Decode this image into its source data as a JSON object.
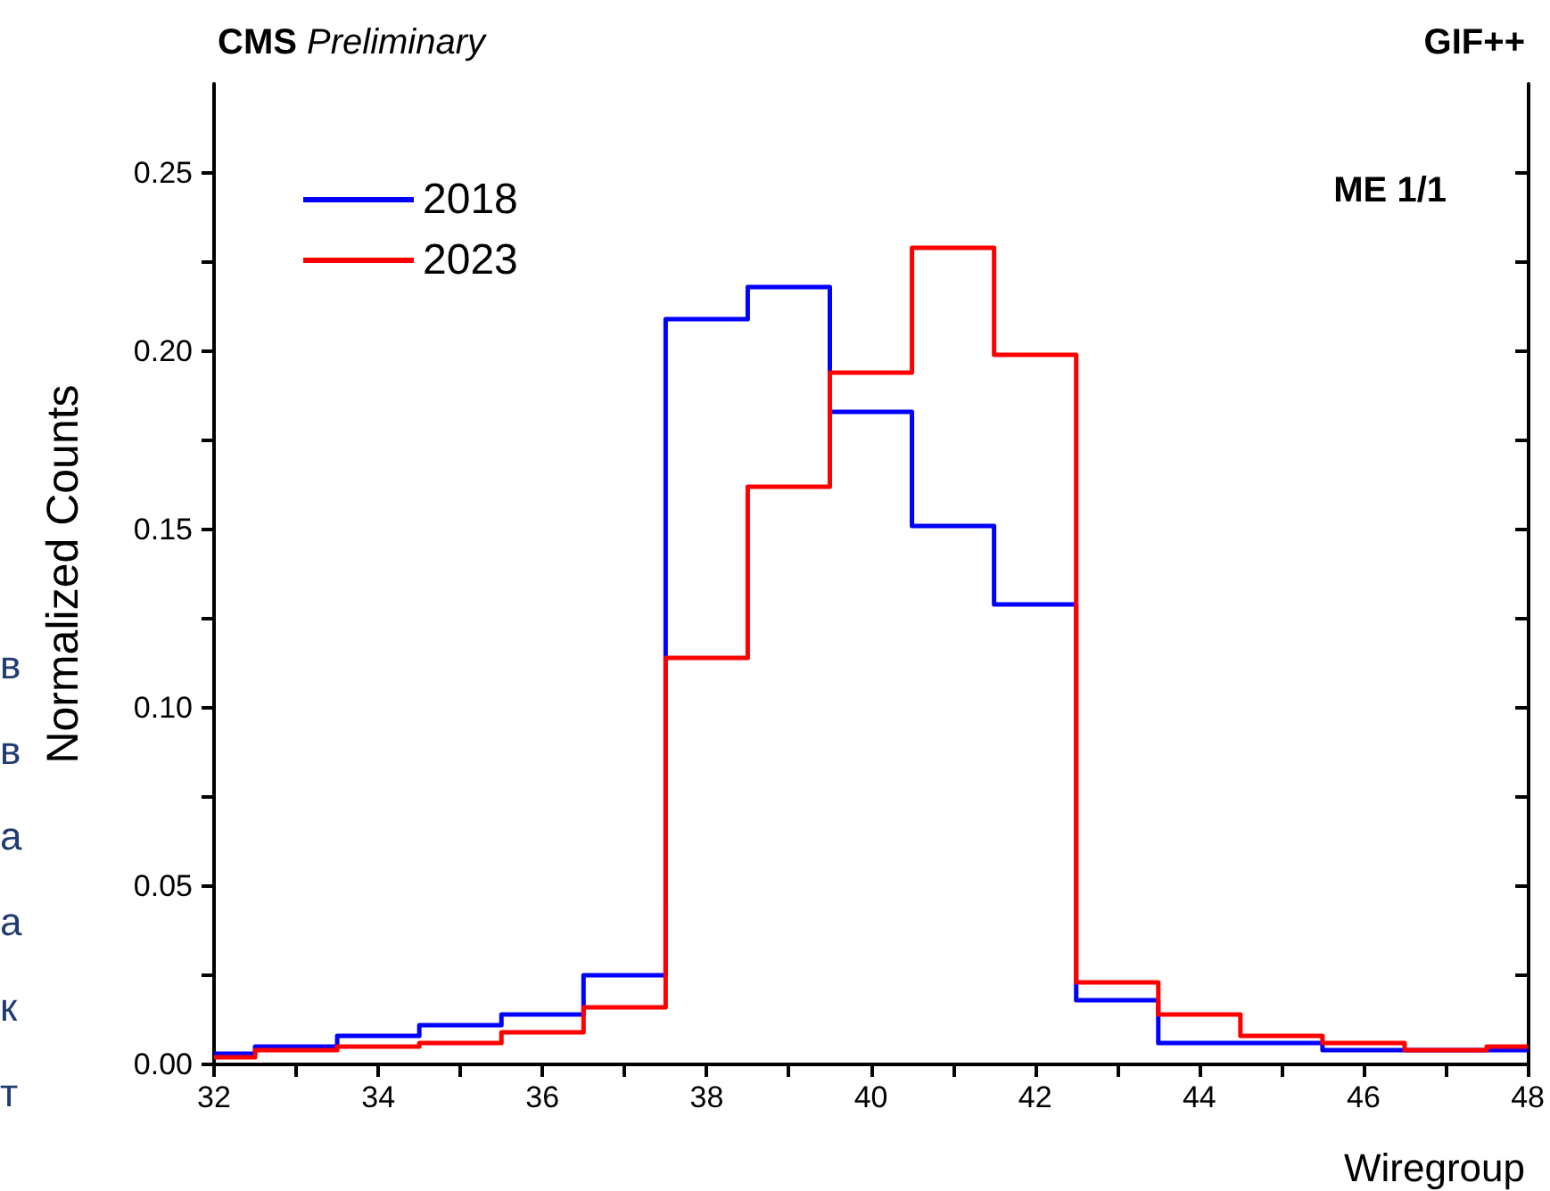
{
  "chart_data": {
    "type": "histogram",
    "title": "CMS Preliminary",
    "xlabel": "Wiregroup",
    "ylabel": "Normalized Counts",
    "annotations": [
      "GIF++",
      "ME 1/1",
      "в",
      "в",
      "а",
      "а",
      "к",
      "т"
    ],
    "bins": [
      32,
      32.5,
      33.5,
      34.5,
      35.5,
      36.5,
      37.5,
      38.5,
      39.5,
      40.5,
      41.5,
      42.5,
      43.5,
      44.5,
      45.5,
      46.5,
      47.5,
      48
    ],
    "series": [
      {
        "name": "2018",
        "color": "#0000ff",
        "values": [
          0.003,
          0.005,
          0.008,
          0.011,
          0.014,
          0.025,
          0.209,
          0.218,
          0.183,
          0.151,
          0.129,
          0.018,
          0.006,
          0.006,
          0.004,
          0.004,
          0.004
        ]
      },
      {
        "name": "2023",
        "color": "#ff0000",
        "values": [
          0.002,
          0.004,
          0.005,
          0.006,
          0.009,
          0.016,
          0.114,
          0.162,
          0.194,
          0.229,
          0.199,
          0.023,
          0.014,
          0.008,
          0.006,
          0.004,
          0.005
        ]
      }
    ],
    "xlim": [
      32,
      48
    ],
    "xticks": [
      32,
      {
        "value": 33,
        "label": null
      },
      34,
      {
        "value": 35,
        "label": null
      },
      36,
      {
        "value": 37,
        "label": null
      },
      38,
      {
        "value": 39,
        "label": null
      },
      40,
      {
        "value": 41,
        "label": null
      },
      42,
      {
        "value": 43,
        "label": null
      },
      44,
      {
        "value": 45,
        "label": null
      },
      46,
      {
        "value": 47,
        "label": null
      },
      48
    ],
    "ylim": [
      0,
      0.275
    ],
    "yticks": [
      {
        "value": 0,
        "label": "0.00"
      },
      {
        "value": 0.025,
        "label": null
      },
      {
        "value": 0.05,
        "label": "0.05"
      },
      {
        "value": 0.075,
        "label": null
      },
      {
        "value": 0.1,
        "label": "0.10"
      },
      {
        "value": 0.125,
        "label": null
      },
      {
        "value": 0.15,
        "label": "0.15"
      },
      {
        "value": 0.175,
        "label": null
      },
      {
        "value": 0.2,
        "label": "0.20"
      },
      {
        "value": 0.225,
        "label": null
      },
      {
        "value": 0.25,
        "label": "0.25"
      }
    ],
    "legend": "top left",
    "grid": false,
    "line_style": "solid",
    "marker": "none"
  }
}
